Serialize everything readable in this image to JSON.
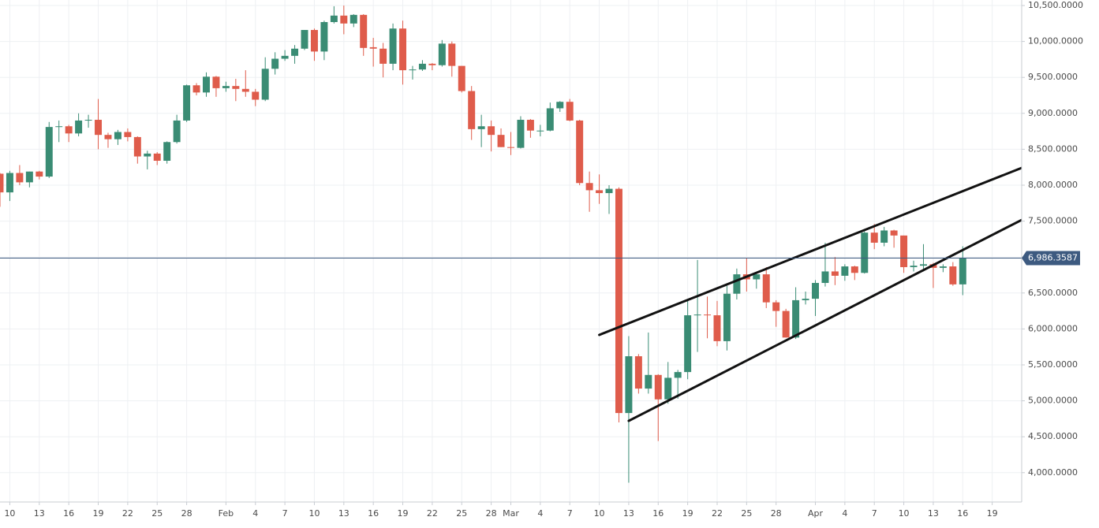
{
  "chart_data": {
    "type": "candlestick",
    "up_color": "#3a8c74",
    "down_color": "#df5c4b",
    "open": [
      8160,
      7900,
      8170,
      8040,
      8190,
      8120,
      8810,
      8820,
      8720,
      8900,
      8910,
      8700,
      8640,
      8740,
      8670,
      8400,
      8440,
      8340,
      8600,
      8900,
      9390,
      9290,
      9510,
      9350,
      9380,
      9340,
      9300,
      9190,
      9620,
      9760,
      9800,
      9900,
      10160,
      9860,
      10270,
      10360,
      10250,
      10370,
      9920,
      9900,
      9690,
      10180,
      9600,
      9610,
      9690,
      9670,
      9970,
      9660,
      9310,
      8780,
      8820,
      8700,
      8530,
      8520,
      8910,
      8750,
      8760,
      9070,
      9160,
      8900,
      8030,
      7930,
      7890,
      7950,
      4830,
      5620,
      5170,
      5360,
      5020,
      5320,
      5400,
      6190,
      6200,
      6190,
      5830,
      6490,
      6760,
      6690,
      6760,
      6370,
      6250,
      5880,
      6400,
      6420,
      6640,
      6800,
      6740,
      6870,
      6780,
      7340,
      7200,
      7370,
      7300,
      6860,
      6880,
      6900,
      6850,
      6870,
      6620
    ],
    "high": [
      8170,
      8200,
      8280,
      8190,
      8200,
      8880,
      8900,
      8840,
      9000,
      8980,
      9200,
      8730,
      8770,
      8790,
      8680,
      8480,
      8460,
      8610,
      8980,
      9400,
      9420,
      9570,
      9520,
      9440,
      9480,
      9600,
      9340,
      9780,
      9850,
      9880,
      9950,
      10160,
      10180,
      10290,
      10490,
      10500,
      10380,
      10380,
      10050,
      9980,
      10250,
      10290,
      9660,
      9740,
      9700,
      10020,
      10000,
      9660,
      9380,
      8980,
      8900,
      8790,
      8740,
      8960,
      8920,
      8840,
      9150,
      9170,
      9200,
      8910,
      8190,
      8150,
      8000,
      7970,
      5900,
      5650,
      5950,
      5370,
      5540,
      5430,
      6400,
      6960,
      6450,
      6390,
      6600,
      6840,
      6990,
      6790,
      6860,
      6400,
      6280,
      6580,
      6520,
      6680,
      7200,
      7000,
      6900,
      6880,
      7360,
      7460,
      7420,
      7380,
      7300,
      6950,
      7180,
      6920,
      6900,
      6930,
      7150
    ],
    "low": [
      7700,
      7780,
      8000,
      7970,
      8080,
      8100,
      8600,
      8600,
      8680,
      8800,
      8500,
      8520,
      8560,
      8610,
      8300,
      8220,
      8280,
      8300,
      8580,
      8880,
      9250,
      9230,
      9230,
      9300,
      9170,
      9230,
      9100,
      9170,
      9540,
      9730,
      9690,
      9880,
      9730,
      9740,
      10250,
      10100,
      10200,
      9800,
      9650,
      9500,
      9600,
      9400,
      9470,
      9590,
      9600,
      9650,
      9510,
      9290,
      8630,
      8530,
      8470,
      8530,
      8420,
      8510,
      8660,
      8680,
      8750,
      9020,
      8890,
      8000,
      7630,
      7740,
      7600,
      4700,
      3860,
      5100,
      5100,
      4440,
      4960,
      5030,
      5300,
      5680,
      5870,
      5760,
      5700,
      6410,
      6520,
      6560,
      6290,
      6030,
      5880,
      5860,
      6340,
      6180,
      6590,
      6610,
      6670,
      6680,
      6770,
      7110,
      7150,
      7130,
      6780,
      6800,
      6800,
      6570,
      6790,
      6600,
      6470
    ],
    "close": [
      7900,
      8170,
      8040,
      8190,
      8120,
      8810,
      8820,
      8720,
      8900,
      8910,
      8700,
      8640,
      8740,
      8670,
      8400,
      8440,
      8340,
      8600,
      8900,
      9390,
      9290,
      9510,
      9350,
      9380,
      9340,
      9300,
      9190,
      9620,
      9760,
      9800,
      9900,
      10160,
      9860,
      10270,
      10360,
      10250,
      10370,
      9910,
      9900,
      9690,
      10180,
      9600,
      9610,
      9690,
      9670,
      9970,
      9660,
      9310,
      8780,
      8820,
      8700,
      8530,
      8520,
      8910,
      8760,
      8760,
      9070,
      9160,
      8900,
      8030,
      7930,
      7890,
      7950,
      4830,
      5620,
      5170,
      5360,
      5020,
      5320,
      5400,
      6190,
      6200,
      6190,
      5830,
      6490,
      6760,
      6690,
      6760,
      6370,
      6250,
      5880,
      6400,
      6420,
      6640,
      6800,
      6740,
      6870,
      6780,
      7340,
      7200,
      7370,
      7300,
      6860,
      6880,
      6900,
      6850,
      6870,
      6620,
      6986
    ],
    "xlim": [
      0,
      104
    ],
    "xticks": [
      {
        "value": 1,
        "label": "10"
      },
      {
        "value": 4,
        "label": "13"
      },
      {
        "value": 7,
        "label": "16"
      },
      {
        "value": 10,
        "label": "19"
      },
      {
        "value": 13,
        "label": "22"
      },
      {
        "value": 16,
        "label": "25"
      },
      {
        "value": 19,
        "label": "28"
      },
      {
        "value": 23,
        "label": "Feb"
      },
      {
        "value": 26,
        "label": "4"
      },
      {
        "value": 29,
        "label": "7"
      },
      {
        "value": 32,
        "label": "10"
      },
      {
        "value": 35,
        "label": "13"
      },
      {
        "value": 38,
        "label": "16"
      },
      {
        "value": 41,
        "label": "19"
      },
      {
        "value": 44,
        "label": "22"
      },
      {
        "value": 47,
        "label": "25"
      },
      {
        "value": 50,
        "label": "28"
      },
      {
        "value": 52,
        "label": "Mar"
      },
      {
        "value": 55,
        "label": "4"
      },
      {
        "value": 58,
        "label": "7"
      },
      {
        "value": 61,
        "label": "10"
      },
      {
        "value": 64,
        "label": "13"
      },
      {
        "value": 67,
        "label": "16"
      },
      {
        "value": 70,
        "label": "19"
      },
      {
        "value": 73,
        "label": "22"
      },
      {
        "value": 76,
        "label": "25"
      },
      {
        "value": 79,
        "label": "28"
      },
      {
        "value": 83,
        "label": "Apr"
      },
      {
        "value": 86,
        "label": "4"
      },
      {
        "value": 89,
        "label": "7"
      },
      {
        "value": 92,
        "label": "10"
      },
      {
        "value": 95,
        "label": "13"
      },
      {
        "value": 98,
        "label": "16"
      },
      {
        "value": 101,
        "label": "19"
      }
    ],
    "ylim": [
      3592,
      10577
    ],
    "yticks": [
      {
        "value": 4000,
        "label": "4,000.0000"
      },
      {
        "value": 4500,
        "label": "4,500.0000"
      },
      {
        "value": 5000,
        "label": "5,000.0000"
      },
      {
        "value": 5500,
        "label": "5,500.0000"
      },
      {
        "value": 6000,
        "label": "6,000.0000"
      },
      {
        "value": 6500,
        "label": "6,500.0000"
      },
      {
        "value": 7000,
        "label": "7,000.0000"
      },
      {
        "value": 7500,
        "label": "7,500.0000"
      },
      {
        "value": 8000,
        "label": "8,000.0000"
      },
      {
        "value": 8500,
        "label": "8,500.0000"
      },
      {
        "value": 9000,
        "label": "9,000.0000"
      },
      {
        "value": 9500,
        "label": "9,500.0000"
      },
      {
        "value": 10000,
        "label": "10,000.0000"
      },
      {
        "value": 10500,
        "label": "10,500.0000"
      }
    ],
    "grid": true,
    "current_price": {
      "value": 6986.3587,
      "label": "6,986.3587",
      "color": "#3d5a80"
    },
    "trendlines": [
      {
        "x": [
          61,
          104
        ],
        "y": [
          5917,
          8241
        ]
      },
      {
        "x": [
          64,
          104
        ],
        "y": [
          4721,
          7517
        ]
      }
    ]
  }
}
